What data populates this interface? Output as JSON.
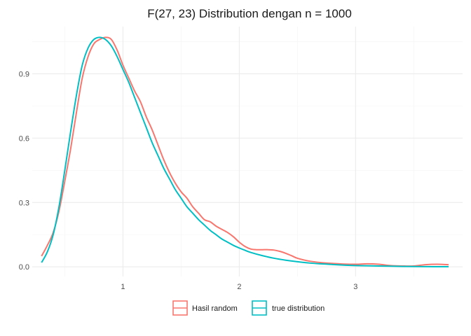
{
  "chart_data": {
    "type": "line",
    "title": "F(27, 23) Distribution dengan n = 1000",
    "xlabel": "",
    "ylabel": "",
    "xlim": [
      0.22,
      3.92
    ],
    "ylim": [
      -0.045,
      1.12
    ],
    "x_ticks": [
      1,
      2,
      3
    ],
    "x_minor_ticks": [
      0.5,
      1.5,
      2.5,
      3.5
    ],
    "y_ticks": [
      0.0,
      0.3,
      0.6,
      0.9
    ],
    "y_minor_ticks": [
      0.15,
      0.45,
      0.75,
      1.05
    ],
    "x_tick_labels": [
      "1",
      "2",
      "3"
    ],
    "y_tick_labels": [
      "0.0",
      "0.3",
      "0.6",
      "0.9"
    ],
    "grid": true,
    "legend_position": "bottom",
    "series": [
      {
        "name": "Hasil random",
        "color": "#F8766D",
        "x": [
          0.3,
          0.35,
          0.4,
          0.45,
          0.5,
          0.55,
          0.6,
          0.65,
          0.7,
          0.75,
          0.8,
          0.85,
          0.9,
          0.95,
          1.0,
          1.05,
          1.1,
          1.15,
          1.2,
          1.25,
          1.3,
          1.35,
          1.4,
          1.45,
          1.5,
          1.55,
          1.6,
          1.65,
          1.7,
          1.75,
          1.8,
          1.85,
          1.9,
          1.95,
          2.0,
          2.05,
          2.1,
          2.15,
          2.2,
          2.25,
          2.3,
          2.35,
          2.4,
          2.45,
          2.5,
          2.6,
          2.7,
          2.8,
          2.9,
          3.0,
          3.1,
          3.2,
          3.3,
          3.4,
          3.5,
          3.6,
          3.7,
          3.8
        ],
        "values": [
          0.05,
          0.1,
          0.16,
          0.26,
          0.4,
          0.55,
          0.72,
          0.88,
          0.98,
          1.04,
          1.06,
          1.07,
          1.06,
          1.01,
          0.94,
          0.88,
          0.82,
          0.77,
          0.7,
          0.64,
          0.57,
          0.5,
          0.44,
          0.39,
          0.35,
          0.32,
          0.28,
          0.25,
          0.22,
          0.21,
          0.19,
          0.175,
          0.16,
          0.14,
          0.115,
          0.095,
          0.083,
          0.08,
          0.08,
          0.08,
          0.078,
          0.072,
          0.063,
          0.052,
          0.04,
          0.027,
          0.02,
          0.016,
          0.013,
          0.012,
          0.014,
          0.012,
          0.006,
          0.004,
          0.004,
          0.01,
          0.012,
          0.01
        ]
      },
      {
        "name": "true distribution",
        "color": "#00BFC4",
        "x": [
          0.3,
          0.35,
          0.4,
          0.45,
          0.5,
          0.55,
          0.6,
          0.65,
          0.7,
          0.75,
          0.8,
          0.85,
          0.9,
          0.95,
          1.0,
          1.05,
          1.1,
          1.15,
          1.2,
          1.25,
          1.3,
          1.35,
          1.4,
          1.45,
          1.5,
          1.55,
          1.6,
          1.65,
          1.7,
          1.75,
          1.8,
          1.85,
          1.9,
          1.95,
          2.0,
          2.05,
          2.1,
          2.2,
          2.3,
          2.4,
          2.5,
          2.6,
          2.7,
          2.8,
          2.9,
          3.0,
          3.2,
          3.4,
          3.6,
          3.8
        ],
        "values": [
          0.02,
          0.07,
          0.15,
          0.28,
          0.45,
          0.63,
          0.8,
          0.94,
          1.02,
          1.06,
          1.07,
          1.06,
          1.03,
          0.98,
          0.92,
          0.86,
          0.79,
          0.72,
          0.65,
          0.58,
          0.52,
          0.46,
          0.41,
          0.36,
          0.32,
          0.28,
          0.25,
          0.22,
          0.195,
          0.17,
          0.15,
          0.13,
          0.115,
          0.1,
          0.088,
          0.077,
          0.067,
          0.052,
          0.04,
          0.031,
          0.024,
          0.018,
          0.014,
          0.011,
          0.008,
          0.006,
          0.004,
          0.002,
          0.001,
          0.0006
        ]
      }
    ]
  }
}
